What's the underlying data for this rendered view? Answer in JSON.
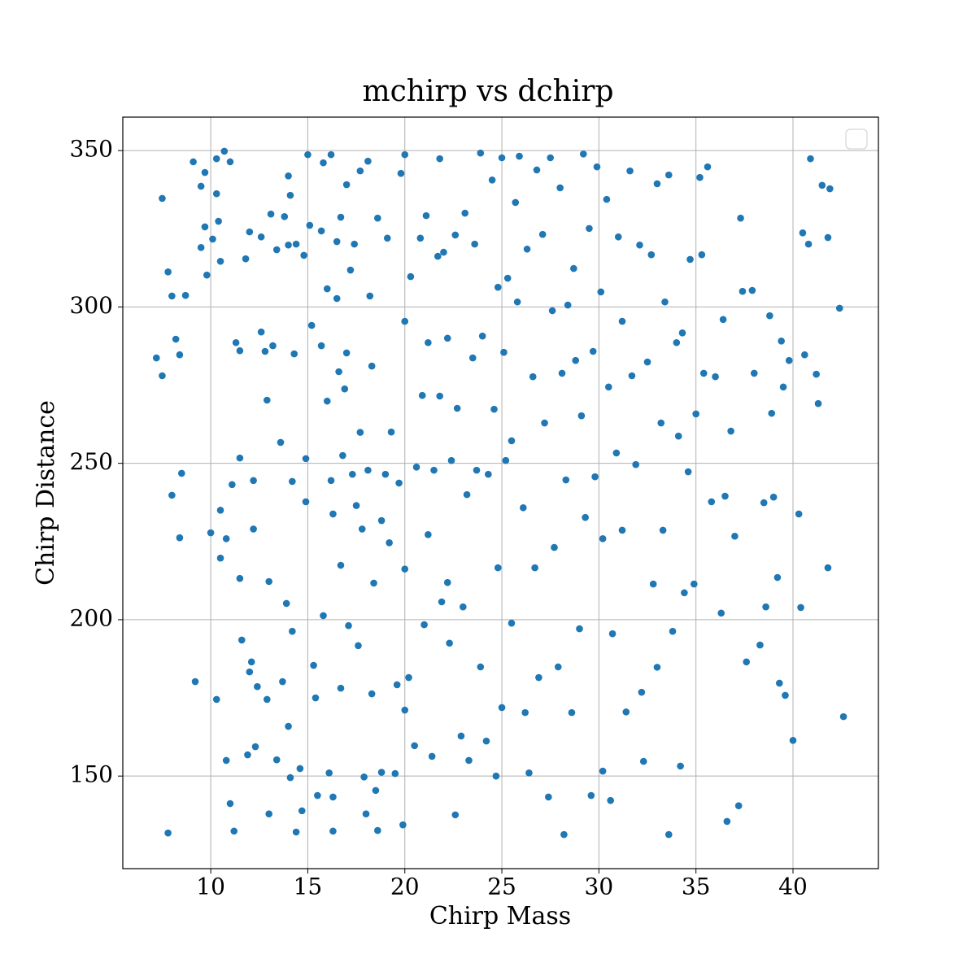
{
  "chart_data": {
    "type": "scatter",
    "title": "mchirp vs dchirp",
    "x_label": "Chirp Mass",
    "y_label": "Chirp Distance",
    "color": "#1f77b4",
    "grid": true,
    "xlim": [
      5.47,
      44.4
    ],
    "ylim": [
      120.4,
      360.7
    ],
    "xticks": [
      10,
      15,
      20,
      25,
      30,
      35,
      40
    ],
    "yticks": [
      150,
      200,
      250,
      300,
      350
    ],
    "x": [
      7.2,
      7.5,
      7.5,
      7.8,
      7.8,
      8.0,
      8.0,
      8.2,
      8.4,
      8.4,
      8.5,
      8.7,
      9.1,
      9.2,
      9.5,
      9.5,
      9.7,
      9.8,
      9.7,
      10,
      10.1,
      10.3,
      10.3,
      10.4,
      10.3,
      10.5,
      10.5,
      10.5,
      10.7,
      10.8,
      10.8,
      11,
      11.0,
      11.1,
      11.2,
      11.3,
      11.5,
      11.5,
      11.5,
      11.6,
      11.8,
      12.0,
      11.9,
      12.0,
      12.1,
      12.2,
      12.2,
      12.3,
      12.4,
      12.6,
      12.6,
      12.8,
      12.9,
      12.9,
      13,
      13,
      13.1,
      13.2,
      13.4,
      13.4,
      13.6,
      13.7,
      13.8,
      13.9,
      14,
      14,
      14.1,
      14.2,
      14,
      14.1,
      14.2,
      14.3,
      14.4,
      14.4,
      14.6,
      14.7,
      14.8,
      14.9,
      14.9,
      15,
      15.1,
      15.2,
      15.3,
      15.4,
      15.5,
      15.7,
      15.7,
      15.8,
      15.8,
      16,
      16,
      16.1,
      16.2,
      16.2,
      16.3,
      16.3,
      16.3,
      16.5,
      16.5,
      16.6,
      16.7,
      16.7,
      16.7,
      16.8,
      16.9,
      17,
      17,
      17.1,
      17.2,
      17.3,
      17.4,
      17.5,
      17.6,
      17.7,
      17.7,
      17.8,
      17.9,
      18,
      18.1,
      18.1,
      18.2,
      18.3,
      18.3,
      18.4,
      18.5,
      18.6,
      18.6,
      18.8,
      18.8,
      19,
      19.1,
      19.2,
      19.3,
      19.5,
      19.6,
      19.7,
      19.8,
      19.9,
      20,
      20,
      20,
      20,
      20.2,
      20.3,
      20.5,
      20.6,
      20.8,
      20.9,
      21,
      21.1,
      21.2,
      21.2,
      21.4,
      21.5,
      21.7,
      21.8,
      21.8,
      21.9,
      22,
      22.2,
      22.2,
      22.3,
      22.4,
      22.6,
      22.6,
      22.7,
      22.9,
      23,
      23.1,
      23.2,
      23.3,
      23.5,
      23.6,
      23.7,
      23.9,
      23.9,
      24,
      24.2,
      24.3,
      24.5,
      24.6,
      24.7,
      24.8,
      24.8,
      25,
      25,
      25.1,
      25.2,
      25.3,
      25.5,
      25.5,
      25.7,
      25.8,
      25.9,
      26.1,
      26.2,
      26.3,
      26.4,
      26.6,
      26.7,
      26.8,
      26.9,
      27.1,
      27.2,
      27.4,
      27.5,
      27.6,
      27.7,
      27.9,
      28,
      28.1,
      28.2,
      28.3,
      28.4,
      28.6,
      28.7,
      28.8,
      29,
      29.1,
      29.2,
      29.3,
      29.5,
      29.6,
      29.7,
      29.8,
      29.9,
      30.1,
      30.2,
      30.2,
      30.4,
      30.5,
      30.6,
      30.7,
      30.9,
      31,
      31.2,
      31.2,
      31.4,
      31.6,
      31.7,
      31.9,
      32.1,
      32.2,
      32.3,
      32.5,
      32.7,
      32.8,
      33,
      33,
      33.2,
      33.3,
      33.4,
      33.6,
      33.6,
      33.8,
      34,
      34.1,
      34.2,
      34.3,
      34.4,
      34.6,
      34.7,
      34.9,
      35,
      35.2,
      35.3,
      35.4,
      35.6,
      35.8,
      36,
      36.3,
      36.4,
      36.5,
      36.6,
      36.8,
      37,
      37.2,
      37.3,
      37.4,
      37.6,
      37.9,
      38,
      38.3,
      38.5,
      38.6,
      38.8,
      38.9,
      39,
      39.2,
      39.3,
      39.4,
      39.5,
      39.6,
      39.8,
      40,
      40.3,
      40.4,
      40.5,
      40.6,
      40.8,
      40.9,
      41.2,
      41.3,
      41.5,
      41.8,
      41.8,
      41.9,
      42.4,
      42.6
    ],
    "values": [
      283.7,
      278,
      334.7,
      311.2,
      131.8,
      303.5,
      239.8,
      289.7,
      284.7,
      226.2,
      246.8,
      303.7,
      346.4,
      180.2,
      338.6,
      319,
      325.6,
      310.2,
      343,
      227.8,
      321.7,
      336.2,
      347.4,
      327.4,
      174.5,
      235,
      219.7,
      314.6,
      349.8,
      155,
      225.9,
      141.2,
      346.4,
      243.2,
      132.4,
      288.6,
      286,
      213.2,
      251.7,
      193.5,
      315.4,
      324,
      156.8,
      183.3,
      186.5,
      244.5,
      229,
      159.4,
      178.6,
      322.4,
      292,
      285.8,
      270.2,
      174.5,
      137.9,
      212.2,
      329.7,
      287.6,
      155.2,
      318.3,
      256.7,
      180.2,
      328.9,
      205.2,
      341.9,
      319.8,
      335.7,
      244.2,
      165.9,
      149.5,
      196.3,
      285,
      320.1,
      132.1,
      152.4,
      138.9,
      316.5,
      251.5,
      237.7,
      348.7,
      326.1,
      294.1,
      185.4,
      175,
      143.8,
      324.3,
      287.6,
      201.3,
      346.1,
      305.8,
      269.9,
      151,
      348.7,
      244.5,
      233.8,
      143.3,
      132.4,
      320.9,
      302.7,
      279.3,
      217.4,
      178.1,
      328.7,
      252.5,
      273.8,
      285.3,
      339.1,
      198.1,
      311.8,
      246.5,
      320.1,
      236.5,
      191.7,
      343.5,
      259.9,
      229,
      149.7,
      137.9,
      247.8,
      346.6,
      303.5,
      281.1,
      176.3,
      211.7,
      145.4,
      132.6,
      328.4,
      151.2,
      231.7,
      246.5,
      322,
      224.6,
      260,
      150.8,
      179.2,
      243.7,
      342.7,
      134.4,
      348.7,
      295.4,
      216.2,
      171.1,
      181.5,
      309.7,
      159.7,
      248.8,
      322,
      271.7,
      198.4,
      329.2,
      288.6,
      227.2,
      156.3,
      247.8,
      316.2,
      347.4,
      271.5,
      205.7,
      317.5,
      290,
      211.9,
      192.5,
      250.9,
      137.6,
      323,
      267.6,
      162.8,
      204.1,
      330,
      240,
      155,
      283.7,
      320.1,
      247.8,
      184.9,
      349.2,
      290.7,
      161.2,
      246.5,
      340.6,
      267.3,
      150,
      306.3,
      216.6,
      171.9,
      347.7,
      285.5,
      250.9,
      309.2,
      257.2,
      198.9,
      333.4,
      301.6,
      348.2,
      235.8,
      170.3,
      318.5,
      151,
      277.7,
      216.6,
      343.8,
      181.5,
      323.2,
      262.9,
      143.3,
      347.7,
      298.8,
      223.1,
      184.9,
      338.1,
      278.8,
      131.3,
      244.7,
      300.6,
      170.3,
      312.3,
      282.9,
      197.1,
      265.2,
      348.9,
      232.7,
      325.1,
      143.8,
      285.8,
      245.7,
      344.8,
      304.8,
      225.9,
      151.6,
      334.4,
      274.4,
      142.2,
      195.5,
      253.3,
      322.4,
      295.4,
      228.6,
      170.5,
      343.5,
      278,
      249.6,
      319.8,
      176.8,
      154.7,
      282.4,
      316.7,
      211.4,
      339.4,
      184.8,
      262.9,
      228.6,
      301.6,
      342.2,
      131.3,
      196.3,
      288.6,
      258.7,
      153.2,
      291.7,
      208.6,
      247.3,
      315.2,
      211.4,
      265.8,
      341.4,
      316.7,
      278.8,
      344.8,
      237.7,
      277.7,
      202.1,
      296,
      239.5,
      135.5,
      260.3,
      226.7,
      140.5,
      328.4,
      305,
      186.5,
      305.3,
      278.8,
      191.9,
      237.4,
      204.1,
      297.2,
      266,
      239.2,
      213.5,
      179.7,
      289.1,
      274.4,
      175.8,
      282.9,
      161.4,
      233.8,
      203.9,
      323.7,
      284.7,
      320.1,
      347.4,
      278.5,
      269.1,
      338.9,
      322.2,
      216.6,
      337.8,
      299.6,
      169
    ]
  }
}
